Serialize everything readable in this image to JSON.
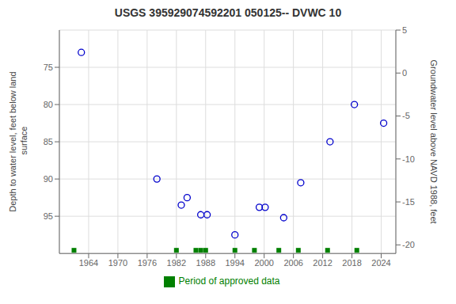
{
  "chart_data": {
    "type": "scatter",
    "title": "USGS 395929074592201 050125-- DVWC 10",
    "ylabel": "Depth to water level, feet below land\n surface",
    "y2label": "Groundwater level above NAVD 1988, feet",
    "series": [
      {
        "x": [
          1962.5,
          1978.0,
          1983.0,
          1984.2,
          1987.0,
          1988.3,
          1994.0,
          1999.0,
          2000.2,
          2004.0,
          2007.5,
          2013.5,
          2018.5,
          2024.5
        ],
        "values": [
          73.0,
          90.0,
          93.5,
          92.5,
          94.8,
          94.8,
          97.5,
          93.8,
          93.8,
          95.2,
          90.5,
          85.0,
          80.0,
          82.5
        ],
        "color": "#0000cc",
        "marker": "circle"
      },
      {
        "name": "Period of approved data",
        "x": [
          1961,
          1982,
          1986,
          1987,
          1988,
          1994,
          1998,
          2003,
          2007,
          2013,
          2019
        ],
        "color": "#008000",
        "marker": "square"
      }
    ],
    "xlim": [
      1958,
      2027
    ],
    "xticks": [
      1964,
      1970,
      1976,
      1982,
      1988,
      1994,
      2000,
      2006,
      2012,
      2018,
      2024
    ],
    "ylim": [
      100,
      70
    ],
    "yticks": [
      75,
      80,
      85,
      90,
      95
    ],
    "y2lim": [
      -21,
      5
    ],
    "y2ticks": [
      5,
      0,
      -5,
      -10,
      -15,
      -20
    ],
    "grid": true,
    "legend": "bottom"
  }
}
